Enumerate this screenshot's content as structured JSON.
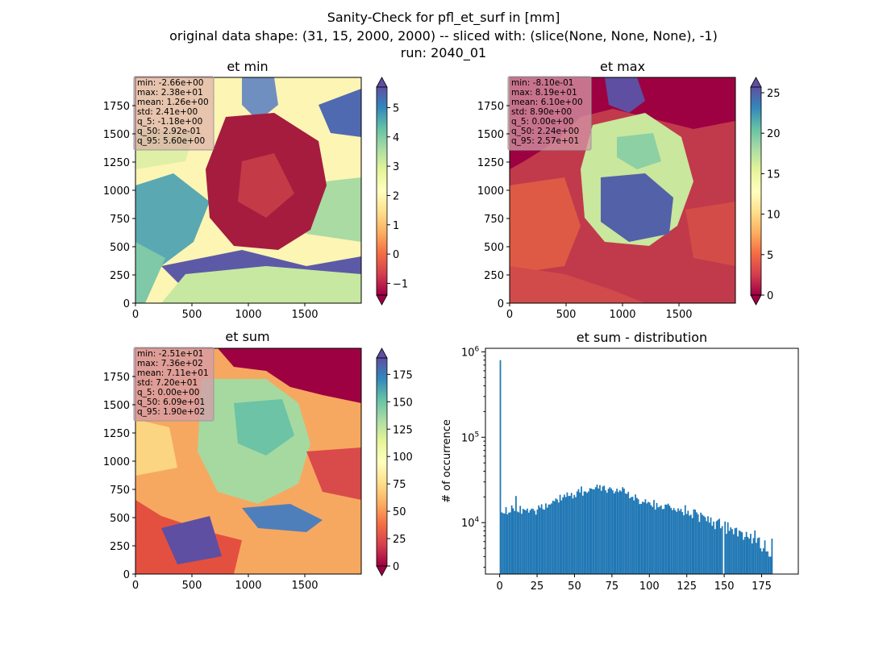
{
  "figure": {
    "title_lines": [
      "Sanity-Check for pfl_et_surf in [mm]",
      "original data shape: (31, 15, 2000, 2000) -- sliced with: (slice(None, None, None), -1)",
      "run: 2040_01"
    ]
  },
  "colors": {
    "bar": "#1f77b4",
    "stats_box_bg": "#d69aa8",
    "ocean_low": "#9e0142",
    "colormap": "Spectral"
  },
  "chart_data": [
    {
      "type": "heatmap",
      "title": "et min",
      "colormap": "Spectral",
      "extend": "both",
      "x_range": [
        0,
        2000
      ],
      "y_range": [
        0,
        2000
      ],
      "x_ticks": [
        "0",
        "500",
        "1000",
        "1500"
      ],
      "y_ticks": [
        "0",
        "250",
        "500",
        "750",
        "1000",
        "1250",
        "1500",
        "1750"
      ],
      "color_range": [
        -1.4,
        5.7
      ],
      "colorbar_ticks": [
        "−1",
        "0",
        "1",
        "2",
        "3",
        "4",
        "5"
      ],
      "colorbar_values": [
        -1,
        0,
        1,
        2,
        3,
        4,
        5
      ],
      "stats": [
        "min: -2.66e+00",
        "max: 2.38e+01",
        "mean: 1.26e+00",
        "std: 2.41e+00",
        "q_5: -1.18e+00",
        "q_50: 2.92e-01",
        "q_95: 5.60e+00"
      ]
    },
    {
      "type": "heatmap",
      "title": "et max",
      "colormap": "Spectral",
      "extend": "both",
      "x_range": [
        0,
        2000
      ],
      "y_range": [
        0,
        2000
      ],
      "x_ticks": [
        "0",
        "500",
        "1000",
        "1500"
      ],
      "y_ticks": [
        "0",
        "250",
        "500",
        "750",
        "1000",
        "1250",
        "1500",
        "1750"
      ],
      "color_range": [
        0,
        25.7
      ],
      "colorbar_ticks": [
        "0",
        "5",
        "10",
        "15",
        "20",
        "25"
      ],
      "colorbar_values": [
        0,
        5,
        10,
        15,
        20,
        25
      ],
      "stats": [
        "min: -8.10e-01",
        "max: 8.19e+01",
        "mean: 6.10e+00",
        "std: 8.90e+00",
        "q_5: 0.00e+00",
        "q_50: 2.24e+00",
        "q_95: 2.57e+01"
      ]
    },
    {
      "type": "heatmap",
      "title": "et sum",
      "colormap": "Spectral",
      "extend": "both",
      "x_range": [
        0,
        2000
      ],
      "y_range": [
        0,
        2000
      ],
      "x_ticks": [
        "0",
        "500",
        "1000",
        "1500"
      ],
      "y_ticks": [
        "0",
        "250",
        "500",
        "750",
        "1000",
        "1250",
        "1500",
        "1750"
      ],
      "color_range": [
        0,
        190
      ],
      "colorbar_ticks": [
        "0",
        "25",
        "50",
        "75",
        "100",
        "125",
        "150",
        "175"
      ],
      "colorbar_values": [
        0,
        25,
        50,
        75,
        100,
        125,
        150,
        175
      ],
      "stats": [
        "min: -2.51e+01",
        "max: 7.36e+02",
        "mean: 7.11e+01",
        "std: 7.20e+01",
        "q_5: 0.00e+00",
        "q_50: 6.09e+01",
        "q_95: 1.90e+02"
      ]
    },
    {
      "type": "bar",
      "title": "et sum - distribution",
      "ylabel": "# of occurrence",
      "yscale": "log",
      "xlim": [
        -9.5,
        199.5
      ],
      "ylim": [
        2500,
        1100000
      ],
      "x_ticks": [
        "0",
        "25",
        "50",
        "75",
        "100",
        "125",
        "150",
        "175"
      ],
      "x_tick_values": [
        0,
        25,
        50,
        75,
        100,
        125,
        150,
        175
      ],
      "y_ticks": [
        {
          "base": "10",
          "exp": "4",
          "value": 10000
        },
        {
          "base": "10",
          "exp": "5",
          "value": 100000
        },
        {
          "base": "10",
          "exp": "6",
          "value": 1000000
        }
      ],
      "bin_width": 0.95,
      "series": [
        {
          "values": [
            800000,
            13200,
            12900,
            12800,
            15200,
            12500,
            13100,
            13200,
            15900,
            14700,
            13700,
            20500,
            13500,
            13200,
            15700,
            12700,
            14500,
            14200,
            13900,
            14600,
            13100,
            14000,
            14600,
            14500,
            13800,
            12400,
            14200,
            15900,
            15000,
            16400,
            14400,
            14200,
            16800,
            15000,
            16300,
            16300,
            16800,
            18100,
            17800,
            19200,
            18700,
            17200,
            21200,
            18200,
            19800,
            21300,
            19900,
            22600,
            20500,
            20600,
            22300,
            19200,
            21100,
            19900,
            23200,
            24700,
            22500,
            26500,
            20700,
            23200,
            23100,
            22300,
            23200,
            25300,
            25000,
            24600,
            24500,
            26000,
            27900,
            25100,
            27500,
            23600,
            26500,
            27100,
            23900,
            22400,
            24900,
            26000,
            25100,
            23900,
            22000,
            23200,
            25000,
            22800,
            24000,
            23200,
            26000,
            25000,
            22000,
            21700,
            23000,
            19300,
            19900,
            20100,
            18200,
            21400,
            19500,
            18800,
            16500,
            16600,
            17600,
            17300,
            18800,
            16800,
            17500,
            17200,
            16000,
            15300,
            18400,
            14200,
            17000,
            15100,
            15400,
            15900,
            14400,
            14500,
            16300,
            16200,
            16700,
            15800,
            14900,
            14000,
            14800,
            14000,
            13400,
            14700,
            13800,
            14500,
            13300,
            12200,
            16000,
            12600,
            13800,
            12100,
            12400,
            11300,
            14300,
            14200,
            13200,
            12500,
            10200,
            13100,
            12400,
            12000,
            11600,
            10400,
            11900,
            10000,
            11500,
            9200,
            10300,
            8400,
            10400,
            10800,
            11100,
            8600,
            9100,
            2500,
            10300,
            7400,
            10100,
            8000,
            8800,
            8400,
            7300,
            8600,
            8700,
            6900,
            8100,
            7900,
            7700,
            6300,
            6800,
            7800,
            6800,
            6500,
            7400,
            5700,
            6600,
            8100,
            5800,
            6600,
            6700,
            5000,
            4600,
            5000,
            6200,
            4600,
            4600,
            4000,
            4000,
            6500
          ]
        }
      ]
    }
  ]
}
